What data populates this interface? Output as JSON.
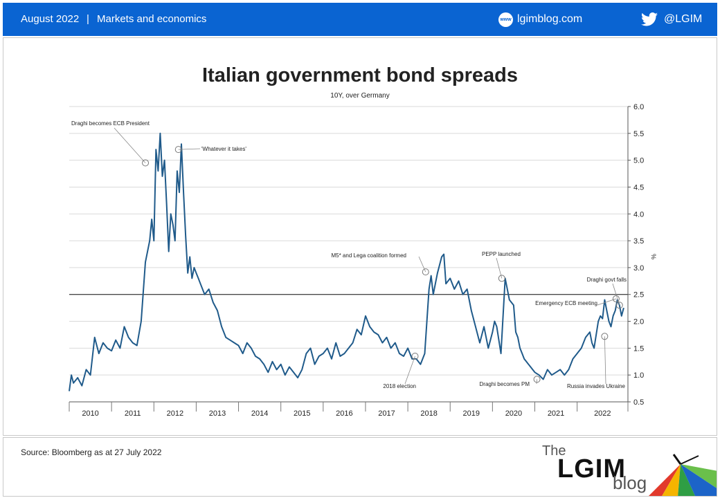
{
  "header": {
    "date": "August 2022",
    "separator": "|",
    "category": "Markets and economics",
    "site_icon_text": "www",
    "site": "lgimblog.com",
    "twitter_handle": "@LGIM",
    "bar_color": "#0a64d2"
  },
  "chart_data": {
    "type": "line",
    "title": "Italian government bond spreads",
    "subtitle": "10Y, over Germany",
    "ylabel": "%",
    "xlabel": "",
    "ylim": [
      0.5,
      6.0
    ],
    "y_ticks": [
      "6.0",
      "5.5",
      "5.0",
      "4.5",
      "4.0",
      "3.5",
      "3.0",
      "2.5",
      "2.0",
      "1.5",
      "1.0",
      "0.5"
    ],
    "x_ticks": [
      "2010",
      "2011",
      "2012",
      "2013",
      "2014",
      "2015",
      "2016",
      "2017",
      "2018",
      "2019",
      "2020",
      "2021",
      "2022"
    ],
    "xlim": [
      2009.5,
      2022.7
    ],
    "grid": true,
    "reference_line": 2.5,
    "line_color": "#1f5a8a",
    "series": [
      {
        "x": [
          2009.5,
          2009.55,
          2009.6,
          2009.7,
          2009.8,
          2009.9,
          2010.0,
          2010.1,
          2010.2,
          2010.3,
          2010.4,
          2010.5,
          2010.6,
          2010.7,
          2010.8,
          2010.9,
          2011.0,
          2011.1,
          2011.2,
          2011.3,
          2011.4,
          2011.45,
          2011.5,
          2011.55,
          2011.6,
          2011.65,
          2011.7,
          2011.75,
          2011.8,
          2011.85,
          2011.9,
          2011.95,
          2012.0,
          2012.05,
          2012.1,
          2012.15,
          2012.2,
          2012.25,
          2012.3,
          2012.35,
          2012.4,
          2012.45,
          2012.5,
          2012.55,
          2012.6,
          2012.7,
          2012.8,
          2012.9,
          2013.0,
          2013.1,
          2013.2,
          2013.3,
          2013.4,
          2013.5,
          2013.6,
          2013.7,
          2013.8,
          2013.9,
          2014.0,
          2014.1,
          2014.2,
          2014.3,
          2014.4,
          2014.5,
          2014.6,
          2014.7,
          2014.8,
          2014.9,
          2015.0,
          2015.1,
          2015.2,
          2015.3,
          2015.4,
          2015.5,
          2015.6,
          2015.7,
          2015.8,
          2015.9,
          2016.0,
          2016.1,
          2016.2,
          2016.3,
          2016.4,
          2016.5,
          2016.6,
          2016.7,
          2016.8,
          2016.9,
          2017.0,
          2017.1,
          2017.2,
          2017.3,
          2017.4,
          2017.5,
          2017.6,
          2017.7,
          2017.8,
          2017.9,
          2018.0,
          2018.05,
          2018.1,
          2018.2,
          2018.3,
          2018.35,
          2018.4,
          2018.5,
          2018.6,
          2018.7,
          2018.8,
          2018.9,
          2019.0,
          2019.1,
          2019.2,
          2019.3,
          2019.4,
          2019.5,
          2019.55,
          2019.6,
          2019.7,
          2019.8,
          2019.9,
          2020.0,
          2020.05,
          2020.1,
          2020.15,
          2020.2,
          2020.25,
          2020.3,
          2020.4,
          2020.5,
          2020.6,
          2020.7,
          2020.8,
          2020.9,
          2021.0,
          2021.1,
          2021.2,
          2021.3,
          2021.4,
          2021.5,
          2021.6,
          2021.7,
          2021.8,
          2021.85,
          2021.9,
          2022.0,
          2022.05,
          2022.1,
          2022.15,
          2022.2,
          2022.25,
          2022.3,
          2022.35,
          2022.4,
          2022.45,
          2022.5,
          2022.55,
          2022.6
        ],
        "y": [
          0.7,
          1.0,
          0.85,
          0.95,
          0.8,
          1.1,
          1.0,
          1.7,
          1.4,
          1.6,
          1.5,
          1.45,
          1.65,
          1.5,
          1.9,
          1.7,
          1.6,
          1.55,
          2.0,
          3.1,
          3.5,
          3.9,
          3.5,
          5.2,
          4.8,
          5.5,
          4.7,
          5.0,
          4.2,
          3.3,
          4.0,
          3.8,
          3.5,
          4.8,
          4.4,
          5.3,
          4.4,
          3.6,
          2.9,
          3.2,
          2.8,
          3.0,
          2.9,
          2.8,
          2.7,
          2.5,
          2.6,
          2.35,
          2.2,
          1.9,
          1.7,
          1.65,
          1.6,
          1.55,
          1.4,
          1.6,
          1.5,
          1.35,
          1.3,
          1.2,
          1.05,
          1.25,
          1.1,
          1.2,
          1.0,
          1.15,
          1.05,
          0.95,
          1.1,
          1.4,
          1.5,
          1.2,
          1.35,
          1.4,
          1.5,
          1.3,
          1.6,
          1.35,
          1.4,
          1.5,
          1.6,
          1.85,
          1.75,
          2.1,
          1.9,
          1.8,
          1.75,
          1.6,
          1.7,
          1.5,
          1.6,
          1.4,
          1.35,
          1.5,
          1.3,
          1.3,
          1.2,
          1.4,
          2.6,
          2.85,
          2.5,
          2.9,
          3.2,
          3.25,
          2.7,
          2.8,
          2.6,
          2.75,
          2.5,
          2.6,
          2.2,
          1.9,
          1.6,
          1.9,
          1.5,
          1.8,
          2.0,
          1.9,
          1.4,
          2.8,
          2.4,
          2.3,
          1.8,
          1.7,
          1.5,
          1.4,
          1.3,
          1.25,
          1.15,
          1.05,
          1.0,
          0.92,
          1.1,
          1.0,
          1.05,
          1.1,
          1.0,
          1.1,
          1.3,
          1.4,
          1.5,
          1.7,
          1.8,
          1.6,
          1.5,
          2.0,
          2.1,
          2.05,
          2.4,
          2.2,
          2.0,
          1.9,
          2.1,
          2.2,
          2.4,
          2.3,
          2.1,
          2.25
        ]
      }
    ],
    "annotations": [
      {
        "label": "Draghi becomes ECB President",
        "x": 2011.3,
        "y": 4.95
      },
      {
        "label": "'Whatever it takes'",
        "x": 2012.08,
        "y": 5.2
      },
      {
        "label": "M5* and Lega coalition formed",
        "x": 2017.92,
        "y": 2.92
      },
      {
        "label": "2018 election",
        "x": 2017.67,
        "y": 1.35
      },
      {
        "label": "PEPP launched",
        "x": 2019.72,
        "y": 2.8
      },
      {
        "label": "Draghi becomes PM",
        "x": 2020.55,
        "y": 0.92
      },
      {
        "label": "Emergency ECB meeting",
        "x": 2022.42,
        "y": 2.42
      },
      {
        "label": "Draghi govt falls",
        "x": 2022.5,
        "y": 2.3
      },
      {
        "label": "Russia invades Ukraine",
        "x": 2022.15,
        "y": 1.72
      }
    ]
  },
  "footer": {
    "source": "Source: Bloomberg as at 27 July 2022",
    "logo_the": "The",
    "logo_lgim": "LGIM",
    "logo_blog": "blog"
  }
}
